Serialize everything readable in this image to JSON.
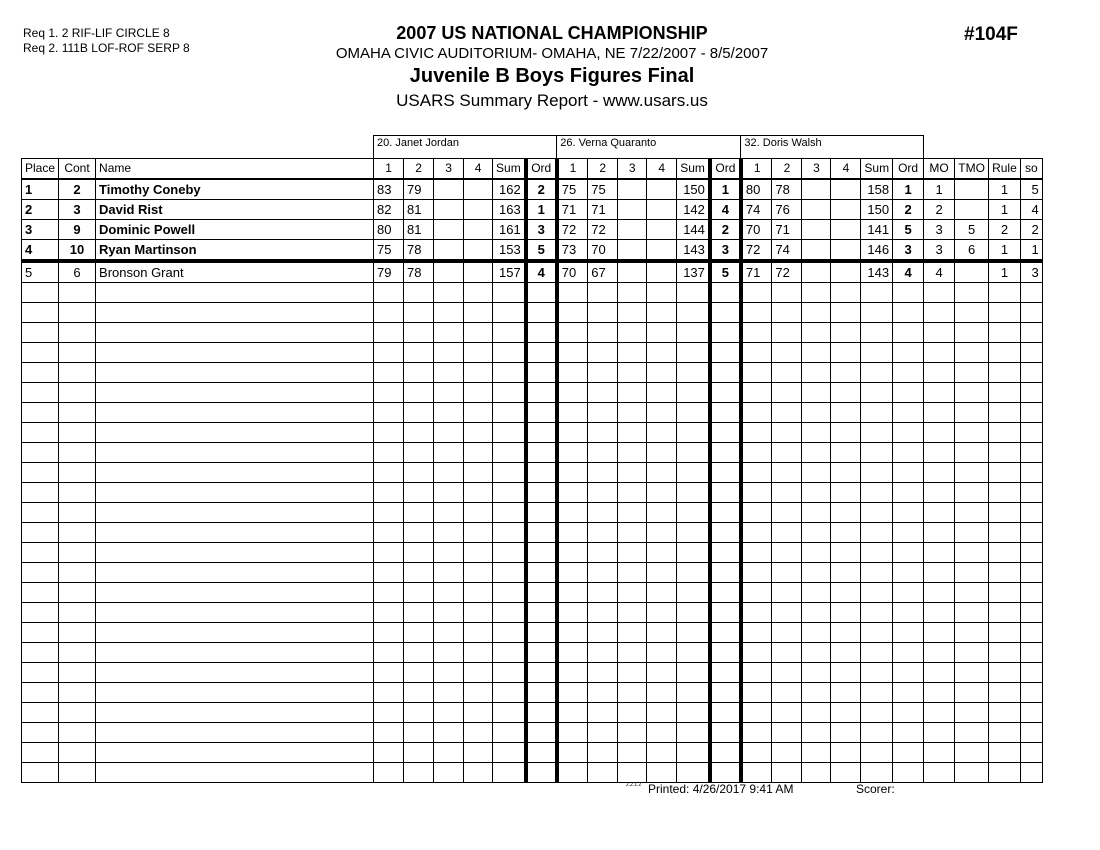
{
  "header": {
    "req1": "Req  1.  2 RIF-LIF CIRCLE 8",
    "req2": "Req  2.  111B LOF-ROF SERP 8",
    "title": "2007 US NATIONAL CHAMPIONSHIP",
    "venue": "OMAHA CIVIC AUDITORIUM- OMAHA, NE  7/22/2007 - 8/5/2007",
    "event": "Juvenile B Boys Figures Final",
    "report": "USARS Summary Report - www.usars.us",
    "event_number": "#104F"
  },
  "judges": [
    "20.  Janet Jordan",
    "26.  Verna Quaranto",
    "32.  Doris  Walsh"
  ],
  "columns": {
    "place": "Place",
    "cont": "Cont",
    "name": "Name",
    "scores": [
      "1",
      "2",
      "3",
      "4",
      "Sum",
      "Ord"
    ],
    "mo": "MO",
    "tmo": "TMO",
    "rule": "Rule",
    "so": "so"
  },
  "rows": [
    {
      "place": "1",
      "cont": "2",
      "name": "Timothy Coneby",
      "bold": true,
      "j": [
        [
          "83",
          "79",
          "",
          "",
          "162",
          "2"
        ],
        [
          "75",
          "75",
          "",
          "",
          "150",
          "1"
        ],
        [
          "80",
          "78",
          "",
          "",
          "158",
          "1"
        ]
      ],
      "mo": "1",
      "tmo": "",
      "rule": "1",
      "so": "5"
    },
    {
      "place": "2",
      "cont": "3",
      "name": "David Rist",
      "bold": true,
      "j": [
        [
          "82",
          "81",
          "",
          "",
          "163",
          "1"
        ],
        [
          "71",
          "71",
          "",
          "",
          "142",
          "4"
        ],
        [
          "74",
          "76",
          "",
          "",
          "150",
          "2"
        ]
      ],
      "mo": "2",
      "tmo": "",
      "rule": "1",
      "so": "4"
    },
    {
      "place": "3",
      "cont": "9",
      "name": "Dominic Powell",
      "bold": true,
      "j": [
        [
          "80",
          "81",
          "",
          "",
          "161",
          "3"
        ],
        [
          "72",
          "72",
          "",
          "",
          "144",
          "2"
        ],
        [
          "70",
          "71",
          "",
          "",
          "141",
          "5"
        ]
      ],
      "mo": "3",
      "tmo": "5",
      "rule": "2",
      "so": "2"
    },
    {
      "place": "4",
      "cont": "10",
      "name": "Ryan Martinson",
      "bold": true,
      "j": [
        [
          "75",
          "78",
          "",
          "",
          "153",
          "5"
        ],
        [
          "73",
          "70",
          "",
          "",
          "143",
          "3"
        ],
        [
          "72",
          "74",
          "",
          "",
          "146",
          "3"
        ]
      ],
      "mo": "3",
      "tmo": "6",
      "rule": "1",
      "so": "1"
    },
    {
      "place": "5",
      "cont": "6",
      "name": "Bronson Grant",
      "bold": false,
      "j": [
        [
          "79",
          "78",
          "",
          "",
          "157",
          "4"
        ],
        [
          "70",
          "67",
          "",
          "",
          "137",
          "5"
        ],
        [
          "71",
          "72",
          "",
          "",
          "143",
          "4"
        ]
      ],
      "mo": "4",
      "tmo": "",
      "rule": "1",
      "so": "3"
    }
  ],
  "footer": {
    "code": "2.2.1.2",
    "printed": "Printed:  4/26/2017  9:41 AM",
    "scorer": "Scorer:"
  }
}
